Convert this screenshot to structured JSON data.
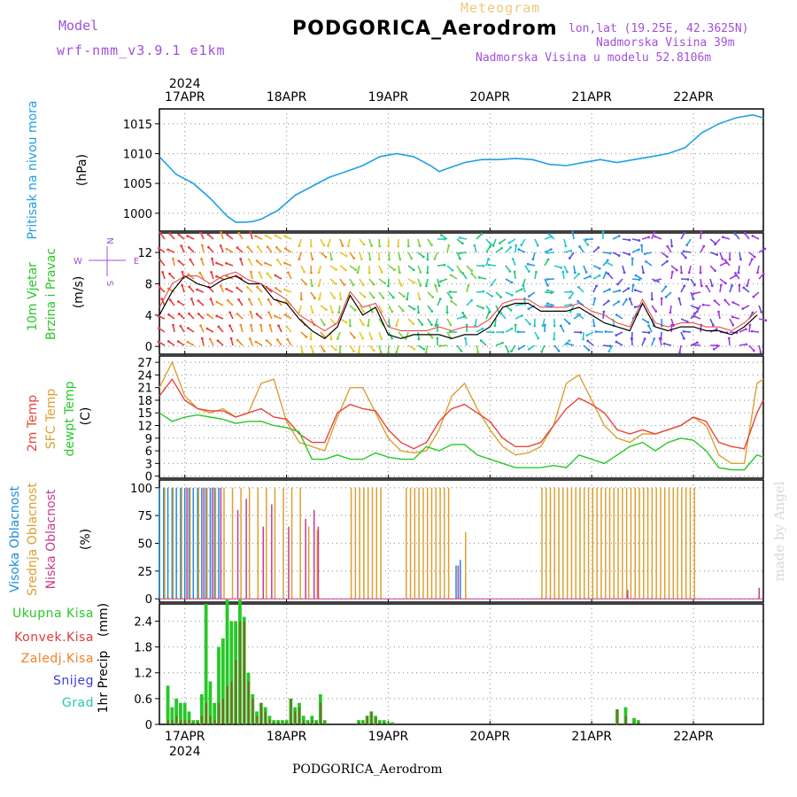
{
  "header": {
    "title": "PODGORICA_Aerodrom",
    "subtitle": "Meteogram",
    "model_label": "Model",
    "model_name": "wrf-nmm_v3.9.1 e1km",
    "lonlat": "lon,lat (19.25E, 42.3625N)",
    "elevation": "Nadmorska Visina 39m",
    "model_elevation": "Nadmorska Visina u modelu 52.8106m",
    "footer_title": "PODGORICA_Aerodrom",
    "watermark": "made by Angel",
    "year": "2024"
  },
  "colors": {
    "pressure": "#1ea0e6",
    "temp2m": "#e6463c",
    "sfc_temp": "#dca032",
    "dewpoint": "#28c828",
    "high_cloud": "#1e8cdc",
    "mid_cloud": "#dca032",
    "low_cloud": "#c83c8c",
    "total_precip": "#28c828",
    "conv_precip": "#dc3c3c",
    "frozen_precip": "#f08228",
    "snow": "#3c3cdc",
    "hail": "#28c8b4",
    "wind_label": "#28c828",
    "wind_compass": "#a050dc"
  },
  "chart_data": [
    {
      "type": "line",
      "id": "pressure",
      "ylabel": "Pritisak na nivou mora",
      "unit": "(hPa)",
      "ylim": [
        997,
        1017.5
      ],
      "yticks": [
        1000,
        1005,
        1010,
        1015
      ],
      "x_range": [
        0,
        142.5
      ],
      "x": [
        0,
        4,
        8,
        12,
        16,
        18,
        20,
        22,
        24,
        28,
        32,
        36,
        40,
        44,
        48,
        52,
        56,
        60,
        64,
        66,
        68,
        72,
        76,
        80,
        84,
        88,
        92,
        96,
        100,
        104,
        108,
        112,
        116,
        120,
        124,
        128,
        132,
        136,
        140,
        142.5
      ],
      "series": [
        {
          "values": [
            1009.5,
            1006.5,
            1005,
            1002.5,
            999.5,
            998.5,
            998.5,
            998.6,
            999,
            1000.5,
            1003,
            1004.5,
            1006,
            1007,
            1008,
            1009.5,
            1010,
            1009.5,
            1008,
            1007,
            1007.5,
            1008.5,
            1009,
            1009,
            1009.2,
            1009,
            1008.2,
            1008,
            1008.5,
            1009,
            1008.5,
            1009,
            1009.5,
            1010,
            1011,
            1013.5,
            1015,
            1016,
            1016.5,
            1016
          ]
        }
      ],
      "grid": true
    },
    {
      "type": "line",
      "id": "wind",
      "ylabel": "10m Vjetar Brzina i Pravac",
      "unit": "(m/s)",
      "ylim": [
        -1,
        14.5
      ],
      "yticks": [
        0,
        4,
        8,
        12
      ],
      "x_range": [
        0,
        142.5
      ],
      "compass": {
        "north": "N",
        "south": "S",
        "east": "E",
        "west": "W"
      },
      "x": [
        0,
        3,
        6,
        9,
        12,
        15,
        18,
        21,
        24,
        27,
        30,
        33,
        36,
        39,
        42,
        45,
        48,
        51,
        54,
        57,
        60,
        63,
        66,
        69,
        72,
        75,
        78,
        81,
        84,
        87,
        90,
        93,
        96,
        99,
        102,
        105,
        108,
        111,
        114,
        117,
        120,
        123,
        126,
        129,
        132,
        135,
        138,
        141
      ],
      "series": [
        {
          "name": "speed",
          "values": [
            4,
            7,
            9,
            8,
            7.5,
            8.5,
            9,
            8,
            8,
            6,
            5.5,
            3.5,
            2,
            1,
            2.5,
            6.5,
            4,
            5,
            1.5,
            1,
            1.5,
            1.5,
            1.5,
            1,
            1.5,
            1.5,
            2.5,
            5,
            5.5,
            5.5,
            4.5,
            4.5,
            4.5,
            5,
            4,
            3,
            2.5,
            2,
            5.5,
            2.5,
            2,
            2.5,
            2.5,
            2,
            2,
            1.5,
            2.5,
            4
          ]
        },
        {
          "name": "gust",
          "values": [
            5,
            8,
            9,
            9,
            8,
            9,
            9.5,
            8.5,
            8,
            7,
            6,
            4,
            3,
            2,
            3,
            7,
            5,
            5.5,
            2.5,
            2,
            2,
            2,
            2.5,
            2,
            2.5,
            2.5,
            3.5,
            5.5,
            6,
            6,
            5,
            5,
            5,
            5.5,
            4.5,
            4,
            3,
            2.5,
            6,
            3,
            2.5,
            3,
            3,
            2.5,
            2.5,
            2,
            3,
            4.5
          ]
        }
      ],
      "grid": true
    },
    {
      "type": "line",
      "id": "temperature",
      "ylabel": "2m Temp",
      "ylabel2": "SFC Temp",
      "ylabel3": "dewpt Temp",
      "unit": "(C)",
      "ylim": [
        -0.5,
        28.5
      ],
      "yticks": [
        0,
        3,
        6,
        9,
        12,
        15,
        18,
        21,
        24,
        27
      ],
      "x_range": [
        0,
        142.5
      ],
      "x": [
        0,
        3,
        6,
        9,
        12,
        15,
        18,
        21,
        24,
        27,
        30,
        33,
        36,
        39,
        42,
        45,
        48,
        51,
        54,
        57,
        60,
        63,
        66,
        69,
        72,
        75,
        78,
        81,
        84,
        87,
        90,
        93,
        96,
        99,
        102,
        105,
        108,
        111,
        114,
        117,
        120,
        123,
        126,
        129,
        132,
        135,
        138,
        141,
        142.5
      ],
      "series": [
        {
          "name": "2m Temp",
          "values": [
            19,
            23,
            18,
            16,
            15.5,
            15.5,
            14,
            15,
            16,
            14,
            13.5,
            10,
            8,
            8,
            15,
            17,
            16,
            15.5,
            11,
            8,
            6.5,
            8,
            13,
            16,
            17,
            15,
            13,
            9,
            7,
            7,
            8,
            12,
            16,
            18.5,
            17,
            15,
            11,
            10,
            11,
            10,
            11,
            12,
            14,
            13,
            8,
            7,
            6.5,
            15,
            18
          ]
        },
        {
          "name": "SFC Temp",
          "values": [
            21,
            27,
            19,
            16,
            15,
            16,
            14,
            15,
            22,
            23,
            13,
            8,
            7,
            6,
            14,
            21,
            21,
            15,
            9,
            6,
            5.5,
            6,
            11,
            19,
            22,
            16,
            11,
            7,
            5,
            5.5,
            7,
            12,
            22,
            24,
            18,
            12,
            9,
            8,
            10,
            10,
            11,
            12,
            14,
            12,
            5,
            3,
            3,
            22,
            23
          ]
        },
        {
          "name": "dewpt Temp",
          "values": [
            15,
            13,
            14,
            14.5,
            14,
            13.5,
            12.5,
            13,
            13,
            12,
            11.5,
            10.5,
            4,
            4,
            5,
            4,
            4,
            5.5,
            4.5,
            4,
            4,
            7,
            6,
            7.5,
            7.5,
            5,
            4,
            3,
            2,
            2,
            2,
            2.5,
            2,
            5,
            4,
            3,
            5,
            7,
            8,
            6,
            8,
            9,
            8.5,
            6,
            2,
            1.5,
            1.5,
            5,
            4.5
          ]
        }
      ],
      "grid": true
    },
    {
      "type": "bar",
      "id": "cloud",
      "ylabel": "Visoka Oblacnost",
      "ylabel2": "Srednja Oblacnost",
      "ylabel3": "Niska Oblacnost",
      "unit": "(%)",
      "ylim": [
        -3,
        107
      ],
      "yticks": [
        0,
        25,
        50,
        75,
        100
      ],
      "x_range": [
        0,
        142.5
      ],
      "series": [
        {
          "name": "Visoka Oblacnost",
          "x": [
            0,
            1,
            2,
            3,
            4,
            5,
            6,
            7,
            8,
            9,
            10,
            11,
            12,
            13,
            14,
            70,
            71
          ],
          "values": [
            100,
            100,
            100,
            100,
            100,
            100,
            100,
            100,
            100,
            100,
            100,
            100,
            100,
            100,
            100,
            30,
            35
          ]
        },
        {
          "name": "Srednja Oblacnost",
          "x": [
            1,
            3,
            5,
            7,
            9,
            11,
            13,
            15,
            17,
            19,
            21,
            23,
            25,
            27,
            29,
            31,
            33,
            35,
            37,
            45,
            46,
            47,
            48,
            49,
            50,
            51,
            52,
            58,
            59,
            60,
            61,
            62,
            63,
            64,
            65,
            66,
            67,
            68,
            72,
            90,
            91,
            92,
            93,
            94,
            95,
            96,
            97,
            98,
            99,
            100,
            101,
            102,
            103,
            104,
            105,
            106,
            107,
            108,
            109,
            110,
            111,
            112,
            113,
            114,
            115,
            116,
            117,
            118,
            119,
            120,
            121,
            122,
            123,
            124,
            125,
            126
          ],
          "values": [
            100,
            100,
            100,
            100,
            100,
            100,
            100,
            100,
            100,
            100,
            100,
            100,
            100,
            100,
            100,
            100,
            100,
            65,
            62,
            100,
            100,
            100,
            100,
            100,
            100,
            100,
            100,
            100,
            100,
            100,
            100,
            100,
            100,
            100,
            100,
            100,
            100,
            100,
            60,
            100,
            100,
            100,
            100,
            100,
            100,
            100,
            100,
            100,
            100,
            100,
            100,
            100,
            100,
            100,
            100,
            100,
            100,
            100,
            100,
            100,
            100,
            100,
            100,
            100,
            100,
            100,
            100,
            100,
            100,
            100,
            100,
            100,
            100,
            100,
            100,
            100
          ]
        },
        {
          "name": "Niska Oblacnost",
          "x": [
            6,
            10,
            12,
            14,
            18,
            20,
            24,
            26,
            30,
            34,
            36,
            37,
            70,
            110,
            141
          ],
          "values": [
            100,
            100,
            100,
            100,
            80,
            90,
            65,
            85,
            65,
            72,
            80,
            65,
            30,
            8,
            10
          ]
        }
      ],
      "grid": true
    },
    {
      "type": "bar",
      "id": "precip",
      "ylabel": "1hr Precip",
      "unit": "(mm)",
      "legend": [
        "Ukupna Kisa",
        "Konvek.Kisa",
        "Zaledj.Kisa",
        "Snijeg",
        "Grad"
      ],
      "ylim": [
        0,
        2.8
      ],
      "yticks": [
        0,
        0.6,
        1.2,
        1.8,
        2.4
      ],
      "x_range": [
        0,
        142.5
      ],
      "x": [
        2,
        3,
        4,
        5,
        6,
        7,
        8,
        9,
        10,
        11,
        12,
        13,
        14,
        15,
        16,
        17,
        18,
        19,
        20,
        21,
        22,
        23,
        24,
        25,
        26,
        27,
        28,
        29,
        30,
        31,
        32,
        33,
        34,
        35,
        36,
        37,
        38,
        39,
        47,
        48,
        49,
        50,
        51,
        52,
        53,
        54,
        55,
        108,
        110,
        112,
        113
      ],
      "series": [
        {
          "name": "Ukupna Kisa",
          "values": [
            0.9,
            0.4,
            0.6,
            0.5,
            0.5,
            0.3,
            0.1,
            0.1,
            0.7,
            2.8,
            1.0,
            0.5,
            1.8,
            2.0,
            2.9,
            2.4,
            2.4,
            2.9,
            2.5,
            1.2,
            0.7,
            0.3,
            0.5,
            0.4,
            0.2,
            0.1,
            0.1,
            0.1,
            0.1,
            0.6,
            0.4,
            0.5,
            0.2,
            0.1,
            0.2,
            0.1,
            0.7,
            0.1,
            0.1,
            0.1,
            0.2,
            0.3,
            0.2,
            0.1,
            0.1,
            0.05,
            0.05,
            0.35,
            0.4,
            0.15,
            0.1
          ]
        },
        {
          "name": "Konvek.Kisa",
          "values": [
            0.1,
            0.1,
            0.2,
            0.1,
            0.1,
            0.1,
            0.05,
            0.05,
            0.2,
            0.5,
            0.2,
            0.1,
            0.5,
            0.6,
            0.9,
            1.0,
            1.5,
            2.4,
            2.4,
            1.0,
            0.6,
            0.2,
            0.5,
            0.3,
            0.1,
            0.05,
            0.05,
            0.05,
            0.05,
            0.6,
            0.3,
            0.4,
            0.1,
            0.05,
            0.1,
            0.05,
            0.5,
            0.05,
            0.05,
            0.05,
            0.2,
            0.3,
            0.15,
            0.05,
            0.05,
            0.02,
            0.02,
            0.35,
            0.2,
            0.05,
            0.05
          ]
        }
      ],
      "grid": true
    }
  ],
  "xaxis": {
    "ticks": [
      {
        "x": 6,
        "label": "17APR"
      },
      {
        "x": 30,
        "label": "18APR"
      },
      {
        "x": 54,
        "label": "19APR"
      },
      {
        "x": 78,
        "label": "20APR"
      },
      {
        "x": 102,
        "label": "21APR"
      },
      {
        "x": 126,
        "label": "22APR"
      }
    ]
  }
}
